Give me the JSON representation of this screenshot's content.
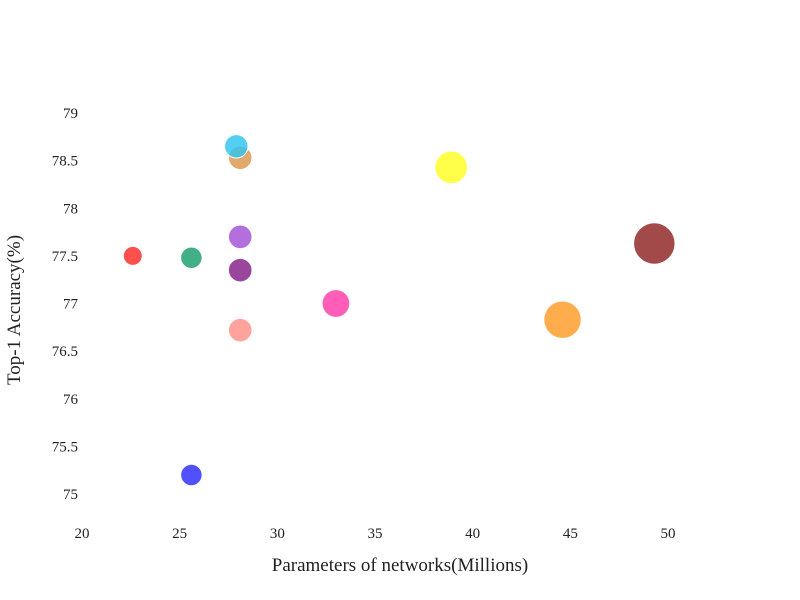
{
  "chart_data": {
    "type": "scatter",
    "title": "",
    "xlabel": "Parameters of networks(Millions)",
    "ylabel": "Top-1 Accuracy(%)",
    "xlim": [
      20,
      50
    ],
    "ylim": [
      75,
      79
    ],
    "x_ticks": [
      "20",
      "25",
      "30",
      "35",
      "40",
      "45",
      "50"
    ],
    "y_ticks": [
      "75",
      "75.5",
      "76",
      "76.5",
      "77",
      "77.5",
      "78",
      "78.5",
      "79"
    ],
    "grid": false,
    "legend": "none",
    "points": [
      {
        "x": 22.6,
        "y": 77.5,
        "size": 22.6,
        "color": "#ff2a2a"
      },
      {
        "x": 25.6,
        "y": 77.48,
        "size": 25.6,
        "color": "#199d6b"
      },
      {
        "x": 25.6,
        "y": 75.2,
        "size": 25.6,
        "color": "#2a2aff"
      },
      {
        "x": 28.1,
        "y": 78.53,
        "size": 28.1,
        "color": "#d9974f"
      },
      {
        "x": 27.9,
        "y": 78.65,
        "size": 27.9,
        "color": "#2ec5f2"
      },
      {
        "x": 28.1,
        "y": 77.7,
        "size": 28.1,
        "color": "#a24fd7"
      },
      {
        "x": 28.1,
        "y": 77.35,
        "size": 28.1,
        "color": "#831f86"
      },
      {
        "x": 28.1,
        "y": 76.72,
        "size": 28.1,
        "color": "#ff8f86"
      },
      {
        "x": 33.0,
        "y": 77.0,
        "size": 33.0,
        "color": "#ff3aa8"
      },
      {
        "x": 38.9,
        "y": 78.43,
        "size": 38.9,
        "color": "#ffff21"
      },
      {
        "x": 44.6,
        "y": 76.83,
        "size": 44.6,
        "color": "#ff9a26"
      },
      {
        "x": 49.3,
        "y": 77.63,
        "size": 49.3,
        "color": "#8e2121"
      }
    ]
  }
}
